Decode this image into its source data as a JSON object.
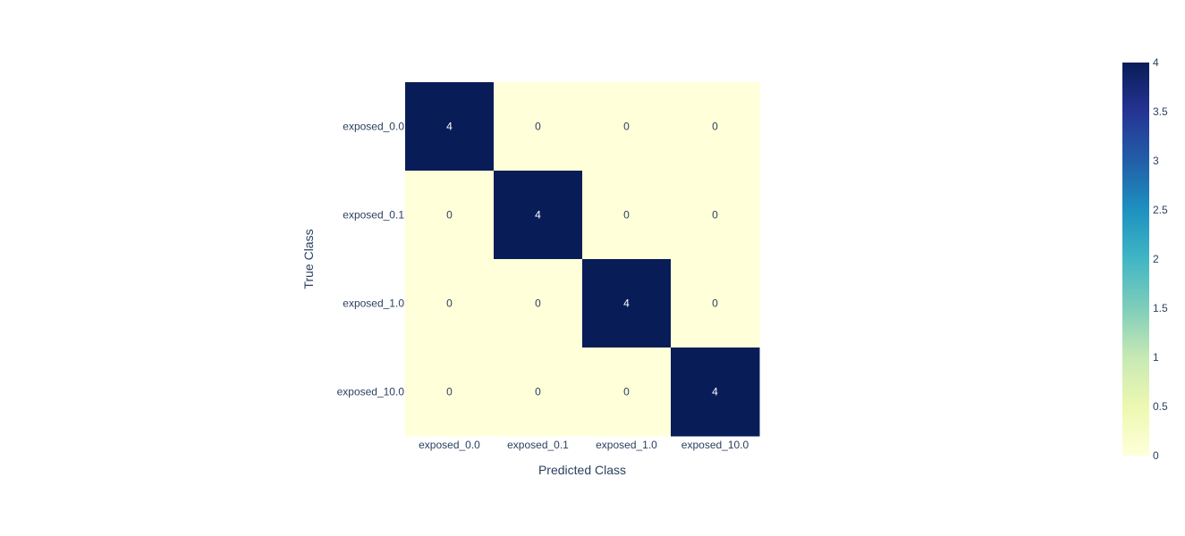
{
  "chart_data": {
    "type": "heatmap",
    "x_categories": [
      "exposed_0.0",
      "exposed_0.1",
      "exposed_1.0",
      "exposed_10.0"
    ],
    "y_categories": [
      "exposed_0.0",
      "exposed_0.1",
      "exposed_1.0",
      "exposed_10.0"
    ],
    "z": [
      [
        4,
        0,
        0,
        0
      ],
      [
        0,
        4,
        0,
        0
      ],
      [
        0,
        0,
        4,
        0
      ],
      [
        0,
        0,
        0,
        4
      ]
    ],
    "xlabel": "Predicted Class",
    "ylabel": "True Class",
    "zlim": [
      0,
      4
    ],
    "colorscale": "YlGnBu",
    "colorbar": {
      "ticks": [
        0,
        0.5,
        1,
        1.5,
        2,
        2.5,
        3,
        3.5,
        4
      ],
      "tick_labels": [
        "0",
        "0.5",
        "1",
        "1.5",
        "2",
        "2.5",
        "3",
        "3.5",
        "4"
      ],
      "placement": "right"
    },
    "colors": {
      "low": "#ffffd9",
      "high": "#081d58"
    }
  }
}
